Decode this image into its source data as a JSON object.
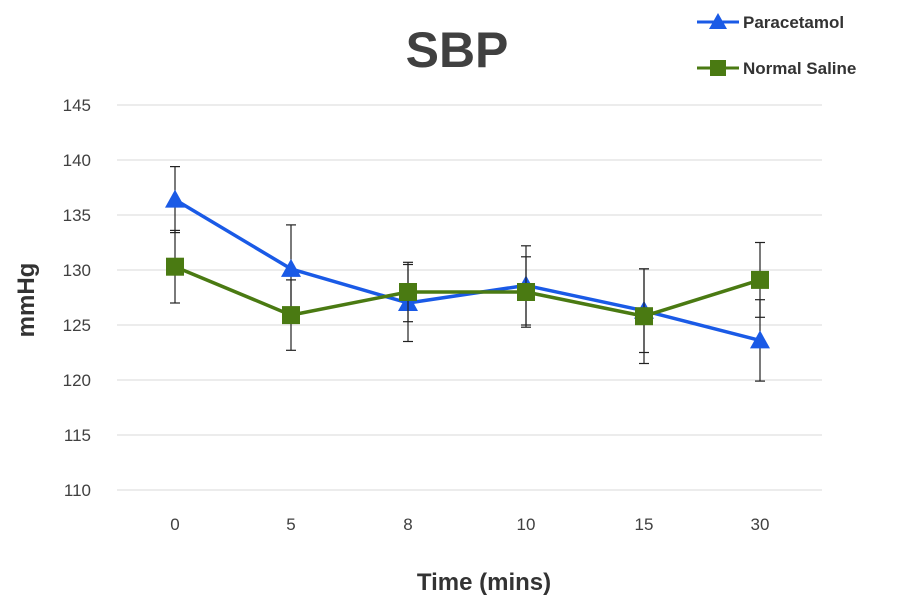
{
  "chart_data": {
    "type": "line",
    "title": "SBP",
    "xlabel": "Time (mins)",
    "ylabel": "mmHg",
    "categories": [
      "0",
      "5",
      "8",
      "10",
      "15",
      "30"
    ],
    "ylim": [
      110,
      145
    ],
    "yticks": [
      110,
      115,
      120,
      125,
      130,
      135,
      140,
      145
    ],
    "grid": true,
    "legend_position": "top-right",
    "series": [
      {
        "name": "Paracetamol",
        "color": "#1a5ae6",
        "marker": "triangle",
        "values": [
          136.4,
          130.1,
          127.0,
          128.6,
          126.3,
          123.6
        ],
        "error": [
          3.0,
          4.0,
          3.5,
          3.6,
          3.8,
          3.7
        ]
      },
      {
        "name": "Normal Saline",
        "color": "#4a7a12",
        "marker": "square",
        "values": [
          130.3,
          125.9,
          128.0,
          128.0,
          125.8,
          129.1
        ],
        "error": [
          3.3,
          3.2,
          2.7,
          3.2,
          4.3,
          3.4
        ]
      }
    ]
  }
}
